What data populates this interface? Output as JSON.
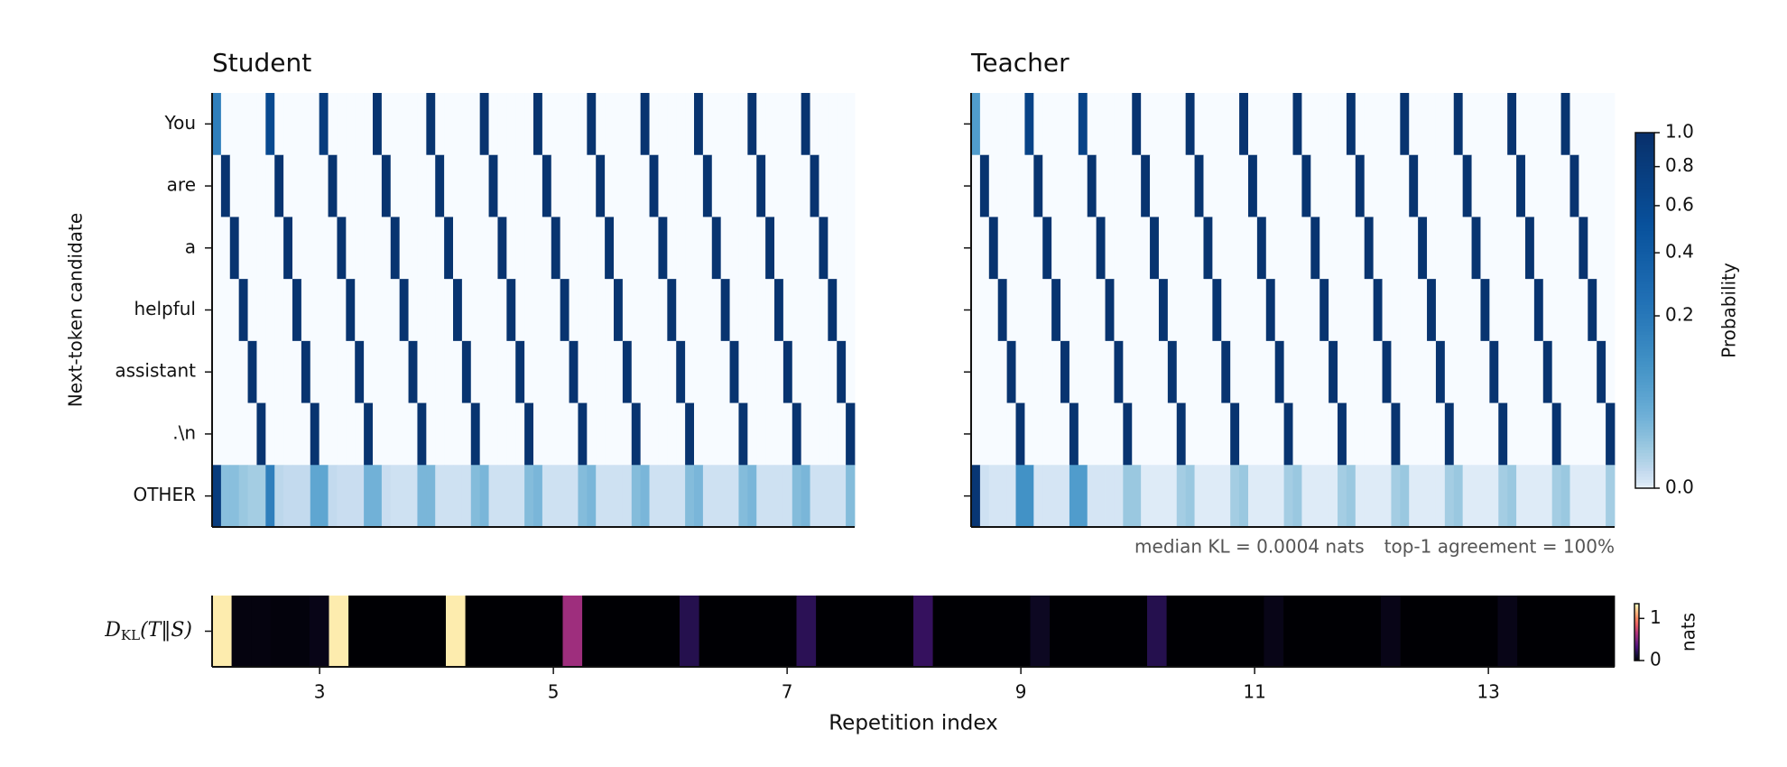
{
  "chart_data": [
    {
      "type": "heatmap",
      "title": "Student",
      "ylabel": "Next-token candidate",
      "categories": [
        "You",
        "are",
        "a",
        "helpful",
        "assistant",
        ".\\n",
        "OTHER"
      ],
      "colormap": "Blues",
      "clim": [
        0,
        1
      ],
      "norm": {
        "type": "power",
        "gamma": 0.45
      },
      "values": [
        [
          0.45,
          0,
          0,
          0,
          0,
          0,
          0.8,
          0,
          0,
          0,
          0,
          0,
          0.9,
          0,
          0,
          0,
          0,
          0,
          0.97,
          0,
          0,
          0,
          0,
          0,
          0.97,
          0,
          0,
          0,
          0,
          0,
          0.97,
          0,
          0,
          0,
          0,
          0,
          0.97,
          0,
          0,
          0,
          0,
          0,
          0.97,
          0,
          0,
          0,
          0,
          0,
          0.97,
          0,
          0,
          0,
          0,
          0,
          0.97,
          0,
          0,
          0,
          0,
          0,
          0.97,
          0,
          0,
          0,
          0,
          0,
          0.97,
          0,
          0,
          0,
          0,
          0
        ],
        [
          0,
          0.97,
          0,
          0,
          0,
          0,
          0,
          0.97,
          0,
          0,
          0,
          0,
          0,
          0.97,
          0,
          0,
          0,
          0,
          0,
          0.97,
          0,
          0,
          0,
          0,
          0,
          0.97,
          0,
          0,
          0,
          0,
          0,
          0.97,
          0,
          0,
          0,
          0,
          0,
          0.97,
          0,
          0,
          0,
          0,
          0,
          0.97,
          0,
          0,
          0,
          0,
          0,
          0.97,
          0,
          0,
          0,
          0,
          0,
          0.97,
          0,
          0,
          0,
          0,
          0,
          0.97,
          0,
          0,
          0,
          0,
          0,
          0.97,
          0,
          0,
          0,
          0
        ],
        [
          0,
          0,
          0.97,
          0,
          0,
          0,
          0,
          0,
          0.97,
          0,
          0,
          0,
          0,
          0,
          0.97,
          0,
          0,
          0,
          0,
          0,
          0.97,
          0,
          0,
          0,
          0,
          0,
          0.97,
          0,
          0,
          0,
          0,
          0,
          0.97,
          0,
          0,
          0,
          0,
          0,
          0.97,
          0,
          0,
          0,
          0,
          0,
          0.97,
          0,
          0,
          0,
          0,
          0,
          0.97,
          0,
          0,
          0,
          0,
          0,
          0.97,
          0,
          0,
          0,
          0,
          0,
          0.97,
          0,
          0,
          0,
          0,
          0,
          0.97,
          0,
          0,
          0
        ],
        [
          0,
          0,
          0,
          0.97,
          0,
          0,
          0,
          0,
          0,
          0.97,
          0,
          0,
          0,
          0,
          0,
          0.97,
          0,
          0,
          0,
          0,
          0,
          0.97,
          0,
          0,
          0,
          0,
          0,
          0.97,
          0,
          0,
          0,
          0,
          0,
          0.97,
          0,
          0,
          0,
          0,
          0,
          0.97,
          0,
          0,
          0,
          0,
          0,
          0.97,
          0,
          0,
          0,
          0,
          0,
          0.97,
          0,
          0,
          0,
          0,
          0,
          0.97,
          0,
          0,
          0,
          0,
          0,
          0.97,
          0,
          0,
          0,
          0,
          0,
          0.97,
          0,
          0
        ],
        [
          0,
          0,
          0,
          0,
          0.97,
          0,
          0,
          0,
          0,
          0,
          0.97,
          0,
          0,
          0,
          0,
          0,
          0.97,
          0,
          0,
          0,
          0,
          0,
          0.97,
          0,
          0,
          0,
          0,
          0,
          0.97,
          0,
          0,
          0,
          0,
          0,
          0.97,
          0,
          0,
          0,
          0,
          0,
          0.97,
          0,
          0,
          0,
          0,
          0,
          0.97,
          0,
          0,
          0,
          0,
          0,
          0.97,
          0,
          0,
          0,
          0,
          0,
          0.97,
          0,
          0,
          0,
          0,
          0,
          0.97,
          0,
          0,
          0,
          0,
          0,
          0.97,
          0
        ],
        [
          0,
          0,
          0,
          0,
          0,
          0.97,
          0,
          0,
          0,
          0,
          0,
          0.97,
          0,
          0,
          0,
          0,
          0,
          0.97,
          0,
          0,
          0,
          0,
          0,
          0.97,
          0,
          0,
          0,
          0,
          0,
          0.97,
          0,
          0,
          0,
          0,
          0,
          0.97,
          0,
          0,
          0,
          0,
          0,
          0.97,
          0,
          0,
          0,
          0,
          0,
          0.97,
          0,
          0,
          0,
          0,
          0,
          0.97,
          0,
          0,
          0,
          0,
          0,
          0.97,
          0,
          0,
          0,
          0,
          0,
          0.97,
          0,
          0,
          0,
          0,
          0,
          0.97
        ],
        [
          0.9,
          0.15,
          0.15,
          0.12,
          0.1,
          0.1,
          0.45,
          0.06,
          0.05,
          0.05,
          0.05,
          0.25,
          0.25,
          0.05,
          0.04,
          0.04,
          0.04,
          0.2,
          0.2,
          0.04,
          0.03,
          0.03,
          0.03,
          0.18,
          0.18,
          0.03,
          0.03,
          0.03,
          0.03,
          0.16,
          0.18,
          0.03,
          0.03,
          0.03,
          0.03,
          0.16,
          0.18,
          0.03,
          0.03,
          0.03,
          0.03,
          0.16,
          0.18,
          0.03,
          0.03,
          0.03,
          0.03,
          0.16,
          0.18,
          0.03,
          0.03,
          0.03,
          0.03,
          0.16,
          0.18,
          0.03,
          0.03,
          0.03,
          0.03,
          0.16,
          0.18,
          0.03,
          0.03,
          0.03,
          0.03,
          0.16,
          0.18,
          0.03,
          0.03,
          0.03,
          0.03,
          0.16
        ]
      ]
    },
    {
      "type": "heatmap",
      "title": "Teacher",
      "colormap": "Blues",
      "clim": [
        0,
        1
      ],
      "norm": {
        "type": "power",
        "gamma": 0.45
      },
      "annotations": [
        "median KL = 0.0004 nats",
        "top-1 agreement = 100%"
      ],
      "colorbar": {
        "label": "Probability",
        "ticks": [
          {
            "value": 0,
            "label": "0.0"
          },
          0.2,
          0.4,
          0.6,
          0.8,
          {
            "value": 1,
            "label": "1.0"
          }
        ]
      },
      "values": [
        [
          0.3,
          0,
          0,
          0,
          0,
          0,
          0.85,
          0,
          0,
          0,
          0,
          0,
          0.85,
          0,
          0,
          0,
          0,
          0,
          0.97,
          0,
          0,
          0,
          0,
          0,
          0.97,
          0,
          0,
          0,
          0,
          0,
          0.97,
          0,
          0,
          0,
          0,
          0,
          0.97,
          0,
          0,
          0,
          0,
          0,
          0.97,
          0,
          0,
          0,
          0,
          0,
          0.97,
          0,
          0,
          0,
          0,
          0,
          0.97,
          0,
          0,
          0,
          0,
          0,
          0.97,
          0,
          0,
          0,
          0,
          0,
          0.97,
          0,
          0,
          0,
          0,
          0
        ],
        [
          0,
          0.97,
          0,
          0,
          0,
          0,
          0,
          0.97,
          0,
          0,
          0,
          0,
          0,
          0.97,
          0,
          0,
          0,
          0,
          0,
          0.97,
          0,
          0,
          0,
          0,
          0,
          0.97,
          0,
          0,
          0,
          0,
          0,
          0.97,
          0,
          0,
          0,
          0,
          0,
          0.97,
          0,
          0,
          0,
          0,
          0,
          0.97,
          0,
          0,
          0,
          0,
          0,
          0.97,
          0,
          0,
          0,
          0,
          0,
          0.97,
          0,
          0,
          0,
          0,
          0,
          0.97,
          0,
          0,
          0,
          0,
          0,
          0.97,
          0,
          0,
          0,
          0
        ],
        [
          0,
          0,
          0.97,
          0,
          0,
          0,
          0,
          0,
          0.97,
          0,
          0,
          0,
          0,
          0,
          0.97,
          0,
          0,
          0,
          0,
          0,
          0.97,
          0,
          0,
          0,
          0,
          0,
          0.97,
          0,
          0,
          0,
          0,
          0,
          0.97,
          0,
          0,
          0,
          0,
          0,
          0.97,
          0,
          0,
          0,
          0,
          0,
          0.97,
          0,
          0,
          0,
          0,
          0,
          0.97,
          0,
          0,
          0,
          0,
          0,
          0.97,
          0,
          0,
          0,
          0,
          0,
          0.97,
          0,
          0,
          0,
          0,
          0,
          0.97,
          0,
          0,
          0
        ],
        [
          0,
          0,
          0,
          0.97,
          0,
          0,
          0,
          0,
          0,
          0.97,
          0,
          0,
          0,
          0,
          0,
          0.97,
          0,
          0,
          0,
          0,
          0,
          0.97,
          0,
          0,
          0,
          0,
          0,
          0.97,
          0,
          0,
          0,
          0,
          0,
          0.97,
          0,
          0,
          0,
          0,
          0,
          0.97,
          0,
          0,
          0,
          0,
          0,
          0.97,
          0,
          0,
          0,
          0,
          0,
          0.97,
          0,
          0,
          0,
          0,
          0,
          0.97,
          0,
          0,
          0,
          0,
          0,
          0.97,
          0,
          0,
          0,
          0,
          0,
          0.97,
          0,
          0
        ],
        [
          0,
          0,
          0,
          0,
          0.97,
          0,
          0,
          0,
          0,
          0,
          0.97,
          0,
          0,
          0,
          0,
          0,
          0.97,
          0,
          0,
          0,
          0,
          0,
          0.97,
          0,
          0,
          0,
          0,
          0,
          0.97,
          0,
          0,
          0,
          0,
          0,
          0.97,
          0,
          0,
          0,
          0,
          0,
          0.97,
          0,
          0,
          0,
          0,
          0,
          0.97,
          0,
          0,
          0,
          0,
          0,
          0.97,
          0,
          0,
          0,
          0,
          0,
          0.97,
          0,
          0,
          0,
          0,
          0,
          0.97,
          0,
          0,
          0,
          0,
          0,
          0.97,
          0
        ],
        [
          0,
          0,
          0,
          0,
          0,
          0.97,
          0,
          0,
          0,
          0,
          0,
          0.97,
          0,
          0,
          0,
          0,
          0,
          0.97,
          0,
          0,
          0,
          0,
          0,
          0.97,
          0,
          0,
          0,
          0,
          0,
          0.97,
          0,
          0,
          0,
          0,
          0,
          0.97,
          0,
          0,
          0,
          0,
          0,
          0.97,
          0,
          0,
          0,
          0,
          0,
          0.97,
          0,
          0,
          0,
          0,
          0,
          0.97,
          0,
          0,
          0,
          0,
          0,
          0.97,
          0,
          0,
          0,
          0,
          0,
          0.97,
          0,
          0,
          0,
          0,
          0,
          0.97
        ],
        [
          0.95,
          0.03,
          0.02,
          0.02,
          0.02,
          0.35,
          0.35,
          0.02,
          0.02,
          0.02,
          0.02,
          0.3,
          0.3,
          0.02,
          0.02,
          0.02,
          0.02,
          0.12,
          0.12,
          0.01,
          0.01,
          0.01,
          0.01,
          0.1,
          0.12,
          0.01,
          0.01,
          0.01,
          0.01,
          0.1,
          0.12,
          0.01,
          0.01,
          0.01,
          0.01,
          0.1,
          0.12,
          0.01,
          0.01,
          0.01,
          0.01,
          0.1,
          0.12,
          0.01,
          0.01,
          0.01,
          0.01,
          0.1,
          0.12,
          0.01,
          0.01,
          0.01,
          0.01,
          0.1,
          0.12,
          0.01,
          0.01,
          0.01,
          0.01,
          0.1,
          0.12,
          0.01,
          0.01,
          0.01,
          0.01,
          0.1,
          0.12,
          0.01,
          0.01,
          0.01,
          0.01,
          0.1
        ]
      ]
    },
    {
      "type": "strip",
      "ylabel": {
        "symbol": "D",
        "subscript": "KL",
        "argument": "(T‖S)"
      },
      "xlabel": "Repetition index",
      "xlim": [
        2.08,
        14.08
      ],
      "xticks": [
        3,
        5,
        7,
        9,
        11,
        13
      ],
      "colormap": "magma",
      "clim": [
        0,
        1.35
      ],
      "colorbar": {
        "label": "nats",
        "ticks": [
          0,
          1
        ]
      },
      "values": [
        1.3,
        0.03,
        0.03,
        0.02,
        0.02,
        0.05,
        1.3,
        0,
        0,
        0,
        0,
        0,
        1.3,
        0,
        0,
        0,
        0,
        0,
        0.6,
        0,
        0,
        0,
        0,
        0,
        0.2,
        0,
        0,
        0,
        0,
        0,
        0.22,
        0,
        0,
        0,
        0,
        0,
        0.25,
        0,
        0,
        0,
        0,
        0,
        0.08,
        0,
        0,
        0,
        0,
        0,
        0.2,
        0,
        0,
        0,
        0,
        0,
        0.05,
        0,
        0,
        0,
        0,
        0,
        0.05,
        0,
        0,
        0,
        0,
        0,
        0.05,
        0,
        0,
        0,
        0,
        0
      ]
    }
  ]
}
